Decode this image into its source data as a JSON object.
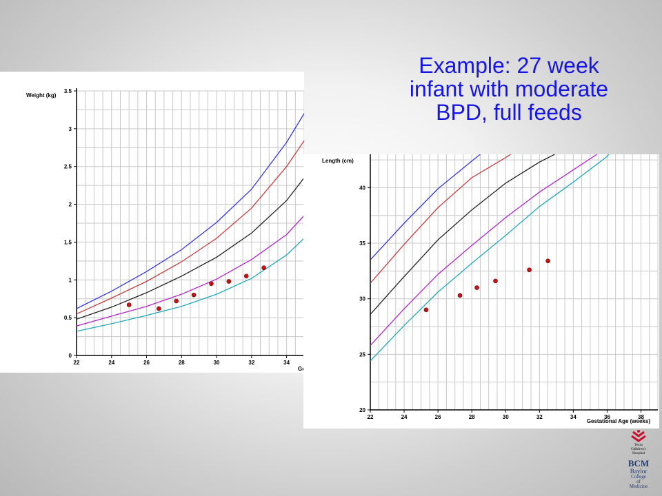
{
  "title": {
    "lines": [
      "Example: 27 week",
      "infant with moderate",
      "BPD, full feeds"
    ]
  },
  "logos": {
    "tch": [
      "Texas",
      "Children's",
      "Hospital"
    ],
    "bcm_mark": "BCM",
    "bcm_name": [
      "Baylor",
      "College",
      "of",
      "Medicine"
    ]
  },
  "colors": {
    "p90": "#3434e6",
    "p75": "#c83c3c",
    "p50": "#202020",
    "p25": "#b024c8",
    "p10": "#1ea8b8",
    "points": "#c81414",
    "grid": "#c8c8c8"
  },
  "chart_data": [
    {
      "type": "line",
      "title": "",
      "xlabel": "Ge",
      "ylabel": "Weight (kg)",
      "xlim": [
        22,
        35
      ],
      "ylim": [
        0,
        3.5
      ],
      "x_ticks": [
        22,
        24,
        26,
        28,
        30,
        32,
        34
      ],
      "y_ticks": [
        0,
        0.5,
        1,
        1.5,
        2,
        2.5,
        3,
        3.5
      ],
      "y_tick_labels": [
        "0",
        "0.5",
        "1",
        "1.5",
        "2",
        "2.5",
        "3",
        "3.5"
      ],
      "grid": true,
      "series": [
        {
          "key": "p90",
          "x": [
            22,
            24,
            26,
            28,
            30,
            32,
            34,
            35
          ],
          "y": [
            0.62,
            0.85,
            1.11,
            1.4,
            1.76,
            2.2,
            2.82,
            3.2
          ]
        },
        {
          "key": "p75",
          "x": [
            22,
            24,
            26,
            28,
            30,
            32,
            34,
            35
          ],
          "y": [
            0.55,
            0.76,
            0.98,
            1.24,
            1.55,
            1.95,
            2.5,
            2.84
          ]
        },
        {
          "key": "p50",
          "x": [
            22,
            24,
            26,
            28,
            30,
            32,
            34,
            35
          ],
          "y": [
            0.48,
            0.64,
            0.83,
            1.05,
            1.3,
            1.62,
            2.05,
            2.35
          ]
        },
        {
          "key": "p25",
          "x": [
            22,
            24,
            26,
            28,
            30,
            32,
            34,
            35
          ],
          "y": [
            0.39,
            0.52,
            0.65,
            0.81,
            1.01,
            1.27,
            1.6,
            1.85
          ]
        },
        {
          "key": "p10",
          "x": [
            22,
            24,
            26,
            28,
            30,
            32,
            34,
            35
          ],
          "y": [
            0.32,
            0.42,
            0.53,
            0.65,
            0.81,
            1.02,
            1.33,
            1.55
          ]
        }
      ],
      "points": {
        "x": [
          25,
          26.7,
          27.7,
          28.7,
          29.7,
          30.7,
          31.7,
          32.7
        ],
        "y": [
          0.67,
          0.62,
          0.72,
          0.8,
          0.95,
          0.98,
          1.05,
          1.16
        ]
      }
    },
    {
      "type": "line",
      "title": "",
      "xlabel": "Gestational Age (weeks)",
      "ylabel": "Length (cm)",
      "xlim": [
        22,
        39
      ],
      "ylim": [
        20,
        43
      ],
      "x_ticks": [
        22,
        24,
        26,
        28,
        30,
        32,
        34,
        36,
        38
      ],
      "y_ticks": [
        20,
        25,
        30,
        35,
        40
      ],
      "y_tick_labels": [
        "20",
        "25",
        "30",
        "35",
        "40"
      ],
      "grid": true,
      "series": [
        {
          "key": "p90",
          "x": [
            22,
            24,
            26,
            28,
            28.5
          ],
          "y": [
            33.5,
            36.8,
            39.9,
            42.4,
            43
          ]
        },
        {
          "key": "p75",
          "x": [
            22,
            24,
            26,
            28,
            30,
            30.3
          ],
          "y": [
            31.4,
            34.9,
            38.2,
            40.9,
            42.7,
            43
          ]
        },
        {
          "key": "p50",
          "x": [
            22,
            24,
            26,
            28,
            30,
            32,
            32.9
          ],
          "y": [
            28.6,
            32,
            35.3,
            38,
            40.4,
            42.3,
            43
          ]
        },
        {
          "key": "p25",
          "x": [
            22,
            24,
            26,
            28,
            30,
            32,
            34,
            35.4
          ],
          "y": [
            25.8,
            29.1,
            32.2,
            34.8,
            37.3,
            39.6,
            41.6,
            43
          ]
        },
        {
          "key": "p10",
          "x": [
            22,
            24,
            26,
            28,
            30,
            32,
            34,
            36,
            36.1
          ],
          "y": [
            24.4,
            27.6,
            30.6,
            33.2,
            35.7,
            38.3,
            40.5,
            42.8,
            43
          ]
        }
      ],
      "points": {
        "x": [
          25.3,
          27.3,
          28.3,
          29.4,
          31.4,
          32.5
        ],
        "y": [
          29,
          30.3,
          31,
          31.6,
          32.6,
          33.4
        ]
      }
    }
  ]
}
